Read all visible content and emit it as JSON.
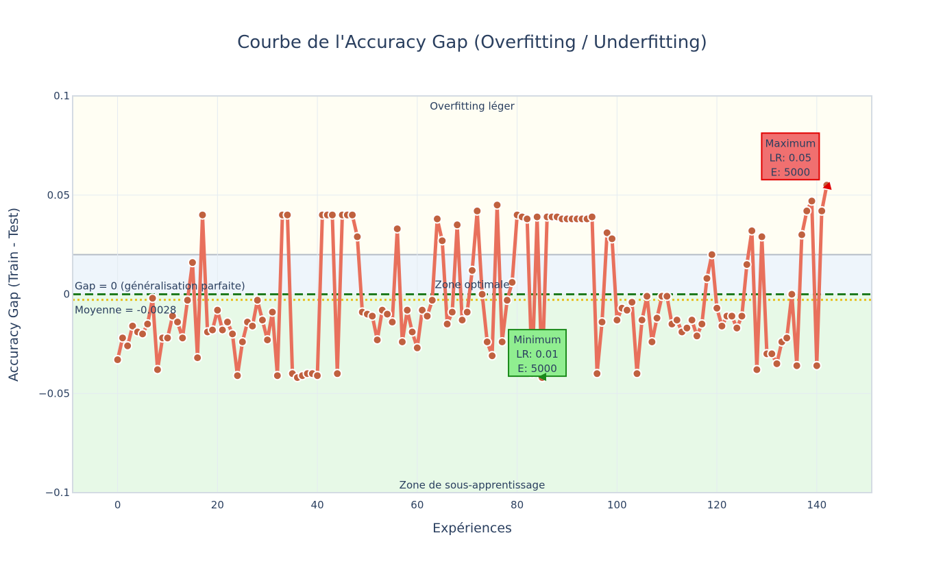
{
  "chart_data": {
    "type": "line",
    "title": "Courbe de l'Accuracy Gap (Overfitting / Underfitting)",
    "xlabel": "Expériences",
    "ylabel": "Accuracy Gap (Train - Test)",
    "xlim": [
      -9,
      151
    ],
    "ylim": [
      -0.1,
      0.1
    ],
    "x_ticks": [
      0,
      20,
      40,
      60,
      80,
      100,
      120,
      140
    ],
    "y_ticks": [
      {
        "value": 0.1,
        "label": "0.1"
      },
      {
        "value": 0.05,
        "label": "0.05"
      },
      {
        "value": 0,
        "label": "0"
      },
      {
        "value": -0.05,
        "label": "−0.05"
      },
      {
        "value": -0.1,
        "label": "−0.1"
      }
    ],
    "grid": true,
    "line_color": "#e8705c",
    "marker_color": "#c0613f",
    "zones": [
      {
        "label": "Overfitting léger",
        "y0": 0.02,
        "y1": 0.1,
        "color": "#fffef3",
        "label_pos": "top"
      },
      {
        "label": "Zone optimale",
        "y0": 0,
        "y1": 0.02,
        "color": "#eef5fb",
        "label_pos": "middle"
      },
      {
        "label": "Zone de sous-apprentissage",
        "y0": -0.1,
        "y1": 0,
        "color": "#e7f9e7",
        "label_pos": "bottom"
      }
    ],
    "reference_lines": [
      {
        "label": "Gap = 0 (généralisation parfaite)",
        "y": 0,
        "color": "#1e7a1e",
        "dash": "dashed"
      },
      {
        "label": "Moyenne = -0.0028",
        "y": -0.0028,
        "color": "#e6c020",
        "dash": "dotted"
      }
    ],
    "series": [
      {
        "x": [
          0,
          1,
          2,
          3,
          4,
          5,
          6,
          7,
          8,
          9,
          10,
          11,
          12,
          13,
          14,
          15,
          16,
          17,
          18,
          19,
          20,
          21,
          22,
          23,
          24,
          25,
          26,
          27,
          28,
          29,
          30,
          31,
          32,
          33,
          34,
          35,
          36,
          37,
          38,
          39,
          40,
          41,
          42,
          43,
          44,
          45,
          46,
          47,
          48,
          49,
          50,
          51,
          52,
          53,
          54,
          55,
          56,
          57,
          58,
          59,
          60,
          61,
          62,
          63,
          64,
          65,
          66,
          67,
          68,
          69,
          70,
          71,
          72,
          73,
          74,
          75,
          76,
          77,
          78,
          79,
          80,
          81,
          82,
          83,
          84,
          85,
          86,
          87,
          88,
          89,
          90,
          91,
          92,
          93,
          94,
          95,
          96,
          97,
          98,
          99,
          100,
          101,
          102,
          103,
          104,
          105,
          106,
          107,
          108,
          109,
          110,
          111,
          112,
          113,
          114,
          115,
          116,
          117,
          118,
          119,
          120,
          121,
          122,
          123,
          124,
          125,
          126,
          127,
          128,
          129,
          130,
          131,
          132,
          133,
          134,
          135,
          136,
          137,
          138,
          139,
          140,
          141,
          142
        ],
        "values": [
          -0.033,
          -0.022,
          -0.026,
          -0.016,
          -0.019,
          -0.02,
          -0.015,
          -0.002,
          -0.038,
          -0.022,
          -0.022,
          -0.011,
          -0.014,
          -0.022,
          -0.003,
          0.016,
          -0.032,
          0.04,
          -0.019,
          -0.018,
          -0.008,
          -0.018,
          -0.014,
          -0.02,
          -0.041,
          -0.024,
          -0.014,
          -0.016,
          -0.003,
          -0.013,
          -0.023,
          -0.009,
          -0.041,
          0.04,
          0.04,
          -0.04,
          -0.042,
          -0.041,
          -0.04,
          -0.04,
          -0.041,
          0.04,
          0.04,
          0.04,
          -0.04,
          0.04,
          0.04,
          0.04,
          0.029,
          -0.009,
          -0.01,
          -0.011,
          -0.023,
          -0.008,
          -0.01,
          -0.014,
          0.033,
          -0.024,
          -0.008,
          -0.019,
          -0.027,
          -0.008,
          -0.011,
          -0.003,
          0.038,
          0.027,
          -0.015,
          -0.009,
          0.035,
          -0.013,
          -0.009,
          0.012,
          0.042,
          0.0,
          -0.024,
          -0.031,
          0.045,
          -0.024,
          -0.003,
          0.006,
          0.04,
          0.039,
          0.038,
          -0.04,
          0.039,
          -0.042,
          0.039,
          0.039,
          0.039,
          0.038,
          0.038,
          0.038,
          0.038,
          0.038,
          0.038,
          0.039,
          -0.04,
          -0.014,
          0.031,
          0.028,
          -0.013,
          -0.007,
          -0.008,
          -0.004,
          -0.04,
          -0.013,
          -0.001,
          -0.024,
          -0.012,
          -0.001,
          -0.001,
          -0.015,
          -0.013,
          -0.019,
          -0.017,
          -0.013,
          -0.021,
          -0.015,
          0.008,
          0.02,
          -0.007,
          -0.016,
          -0.011,
          -0.011,
          -0.017,
          -0.011,
          0.015,
          0.032,
          -0.038,
          0.029,
          -0.03,
          -0.03,
          -0.035,
          -0.024,
          -0.022,
          0.0,
          -0.036,
          0.03,
          0.042,
          0.047,
          -0.036,
          0.042,
          0.055
        ]
      }
    ],
    "annotations": [
      {
        "name": "maximum",
        "lines": [
          "Maximum",
          "LR: 0.05",
          "E: 5000"
        ],
        "x": 142,
        "y": 0.055,
        "box_color": "#f07070",
        "border_color": "#e00000",
        "arrow_color": "#e00000"
      },
      {
        "name": "minimum",
        "lines": [
          "Minimum",
          "LR: 0.01",
          "E: 5000"
        ],
        "x": 85,
        "y": -0.042,
        "box_color": "#90ee90",
        "border_color": "#1a8a1a",
        "arrow_color": "#1a8a1a"
      }
    ]
  }
}
